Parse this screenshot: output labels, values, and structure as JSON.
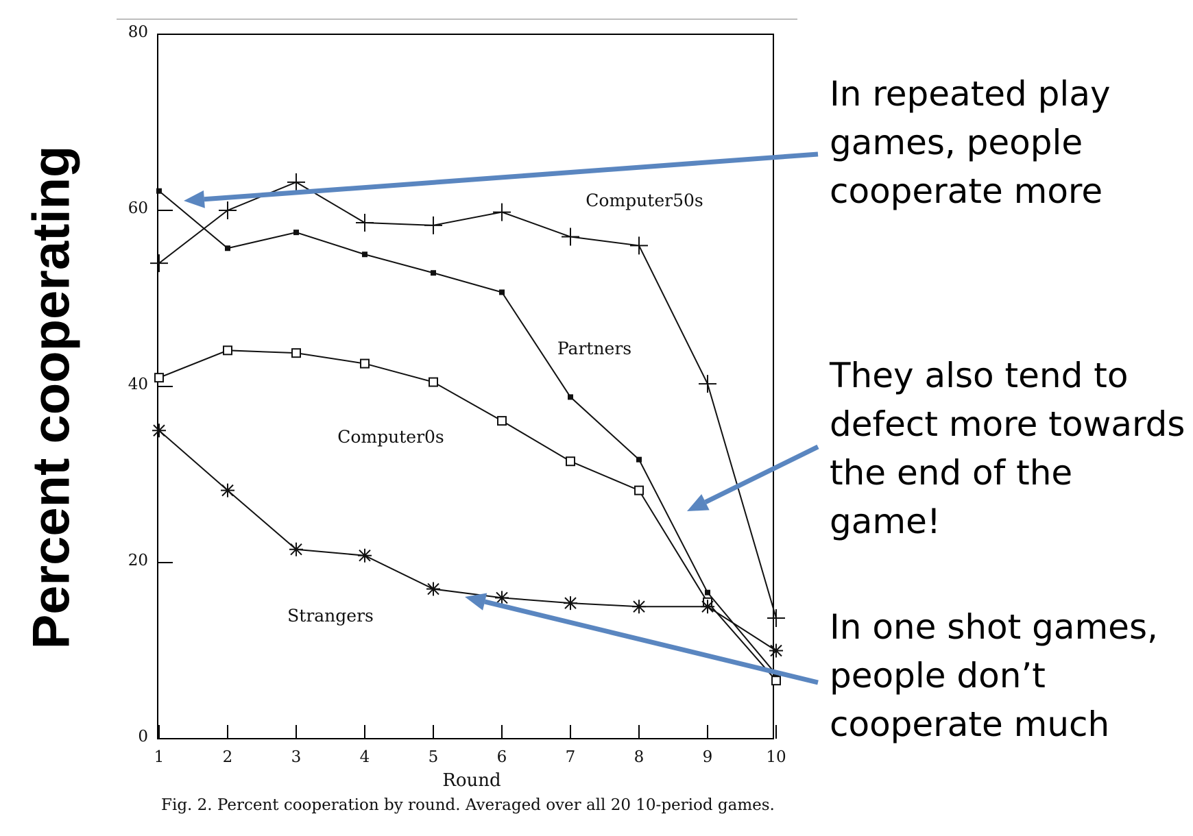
{
  "slide": {
    "y_axis_title": "Percent cooperating",
    "annotations": [
      {
        "id": "repeated",
        "text": "In repeated play\ngames, people\ncooperate more"
      },
      {
        "id": "defect",
        "text": "They also tend to\ndefect more towards\nthe end of the game!"
      },
      {
        "id": "oneshot",
        "text": "In one shot games,\npeople don’t\ncooperate much"
      }
    ],
    "arrow_color": "#5a86c0"
  },
  "chart_data": {
    "type": "line",
    "title": "",
    "caption": "Fig. 2. Percent cooperation by round. Averaged over all 20 10-period games.",
    "xlabel": "Round",
    "ylabel": "",
    "x": [
      1,
      2,
      3,
      4,
      5,
      6,
      7,
      8,
      9,
      10
    ],
    "xlim": [
      1,
      10
    ],
    "ylim": [
      0,
      80
    ],
    "x_ticks": [
      1,
      2,
      3,
      4,
      5,
      6,
      7,
      8,
      9,
      10
    ],
    "y_ticks": [
      0,
      20,
      40,
      60,
      80
    ],
    "grid": false,
    "series": [
      {
        "name": "Computer50s",
        "marker": "plus",
        "values": [
          54,
          60,
          63.2,
          58.6,
          58.3,
          59.8,
          57,
          56,
          40.3,
          13.7
        ]
      },
      {
        "name": "Partners",
        "marker": "dot",
        "values": [
          62.2,
          55.7,
          57.5,
          55,
          52.9,
          50.7,
          38.8,
          31.7,
          16.6,
          7.3
        ]
      },
      {
        "name": "Computer0s",
        "marker": "square",
        "values": [
          41,
          44.1,
          43.8,
          42.6,
          40.5,
          36.1,
          31.5,
          28.2,
          15.5,
          6.6
        ]
      },
      {
        "name": "Strangers",
        "marker": "asterisk",
        "values": [
          35,
          28.2,
          21.5,
          20.8,
          17,
          16,
          15.4,
          15,
          15,
          10
        ]
      }
    ]
  }
}
